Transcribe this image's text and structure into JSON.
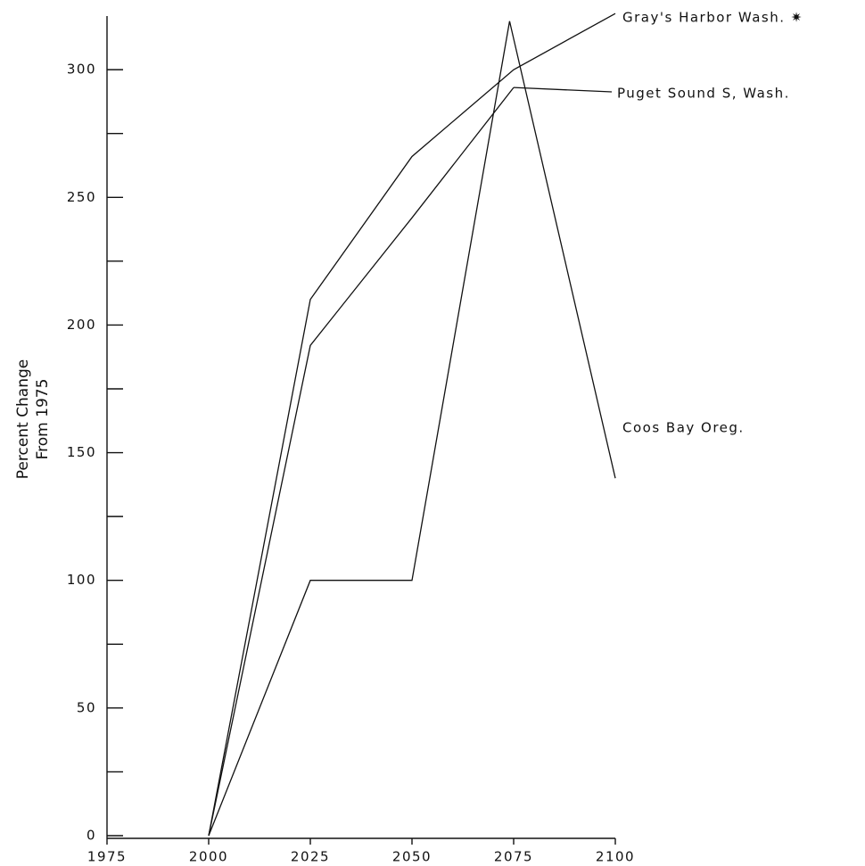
{
  "chart_data": {
    "type": "line",
    "y_label": [
      "Percent Change",
      "From 1975"
    ],
    "xlim": [
      1975,
      2100
    ],
    "xticks": [
      1975,
      2000,
      2025,
      2050,
      2075,
      2100
    ],
    "ylim": [
      0,
      321
    ],
    "yticks": [
      0,
      50,
      100,
      150,
      200,
      250,
      300
    ],
    "yminorticks": [
      25,
      75,
      125,
      175,
      225,
      275
    ],
    "color": "#111111",
    "series": [
      {
        "name": "Gray's Harbor Wash. ✷",
        "x": [
          2000,
          2025,
          2050,
          2075,
          2100
        ],
        "values": [
          0,
          210,
          266,
          300,
          322
        ]
      },
      {
        "name": "Puget Sound S, Wash.",
        "x": [
          2000,
          2025,
          2050,
          2075
        ],
        "values": [
          0,
          192,
          242,
          293
        ]
      },
      {
        "name": "Coos Bay Oreg.",
        "x": [
          2000,
          2025,
          2050,
          2074,
          2100
        ],
        "values": [
          0,
          100,
          100,
          319,
          140
        ]
      }
    ]
  }
}
